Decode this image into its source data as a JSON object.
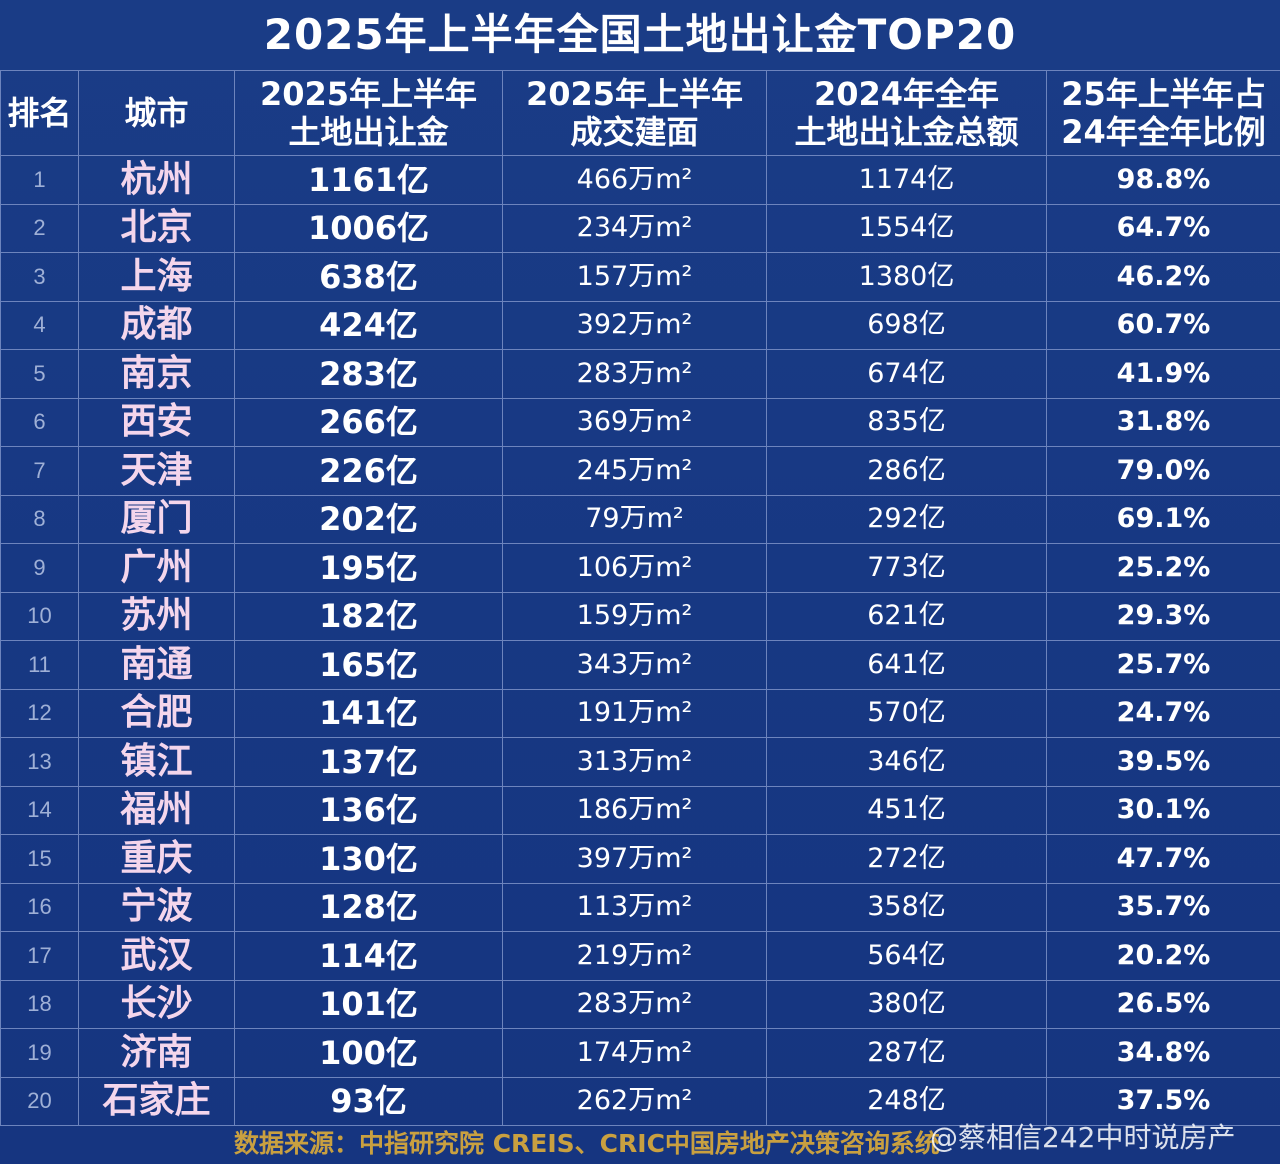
{
  "title": "2025年上半年全国土地出让金TOP20",
  "headers": {
    "rank": "排名",
    "city": "城市",
    "amount_l1": "2025年上半年",
    "amount_l2": "土地出让金",
    "area_l1": "2025年上半年",
    "area_l2": "成交建面",
    "total_l1": "2024年全年",
    "total_l2": "土地出让金总额",
    "ratio_l1": "25年上半年占",
    "ratio_l2": "24年全年比例"
  },
  "rows": [
    {
      "rank": "1",
      "city": "杭州",
      "amount": "1161亿",
      "area": "466万m²",
      "total": "1174亿",
      "ratio": "98.8%"
    },
    {
      "rank": "2",
      "city": "北京",
      "amount": "1006亿",
      "area": "234万m²",
      "total": "1554亿",
      "ratio": "64.7%"
    },
    {
      "rank": "3",
      "city": "上海",
      "amount": "638亿",
      "area": "157万m²",
      "total": "1380亿",
      "ratio": "46.2%"
    },
    {
      "rank": "4",
      "city": "成都",
      "amount": "424亿",
      "area": "392万m²",
      "total": "698亿",
      "ratio": "60.7%"
    },
    {
      "rank": "5",
      "city": "南京",
      "amount": "283亿",
      "area": "283万m²",
      "total": "674亿",
      "ratio": "41.9%"
    },
    {
      "rank": "6",
      "city": "西安",
      "amount": "266亿",
      "area": "369万m²",
      "total": "835亿",
      "ratio": "31.8%"
    },
    {
      "rank": "7",
      "city": "天津",
      "amount": "226亿",
      "area": "245万m²",
      "total": "286亿",
      "ratio": "79.0%"
    },
    {
      "rank": "8",
      "city": "厦门",
      "amount": "202亿",
      "area": "79万m²",
      "total": "292亿",
      "ratio": "69.1%"
    },
    {
      "rank": "9",
      "city": "广州",
      "amount": "195亿",
      "area": "106万m²",
      "total": "773亿",
      "ratio": "25.2%"
    },
    {
      "rank": "10",
      "city": "苏州",
      "amount": "182亿",
      "area": "159万m²",
      "total": "621亿",
      "ratio": "29.3%"
    },
    {
      "rank": "11",
      "city": "南通",
      "amount": "165亿",
      "area": "343万m²",
      "total": "641亿",
      "ratio": "25.7%"
    },
    {
      "rank": "12",
      "city": "合肥",
      "amount": "141亿",
      "area": "191万m²",
      "total": "570亿",
      "ratio": "24.7%"
    },
    {
      "rank": "13",
      "city": "镇江",
      "amount": "137亿",
      "area": "313万m²",
      "total": "346亿",
      "ratio": "39.5%"
    },
    {
      "rank": "14",
      "city": "福州",
      "amount": "136亿",
      "area": "186万m²",
      "total": "451亿",
      "ratio": "30.1%"
    },
    {
      "rank": "15",
      "city": "重庆",
      "amount": "130亿",
      "area": "397万m²",
      "total": "272亿",
      "ratio": "47.7%"
    },
    {
      "rank": "16",
      "city": "宁波",
      "amount": "128亿",
      "area": "113万m²",
      "total": "358亿",
      "ratio": "35.7%"
    },
    {
      "rank": "17",
      "city": "武汉",
      "amount": "114亿",
      "area": "219万m²",
      "total": "564亿",
      "ratio": "20.2%"
    },
    {
      "rank": "18",
      "city": "长沙",
      "amount": "101亿",
      "area": "283万m²",
      "total": "380亿",
      "ratio": "26.5%"
    },
    {
      "rank": "19",
      "city": "济南",
      "amount": "100亿",
      "area": "174万m²",
      "total": "287亿",
      "ratio": "34.8%"
    },
    {
      "rank": "20",
      "city": "石家庄",
      "amount": "93亿",
      "area": "262万m²",
      "total": "248亿",
      "ratio": "37.5%"
    }
  ],
  "source": "数据来源：中指研究院 CREIS、CRIC中国房地产决策咨询系统",
  "watermark": "@蔡相信242中时说房产",
  "colors": {
    "background": "#16367f",
    "grid": "#6d84bd",
    "city_text": "#f4d6ec",
    "source_text": "#c9a040"
  },
  "chart_data": {
    "type": "table",
    "title": "2025年上半年全国土地出让金TOP20",
    "columns": [
      "排名",
      "城市",
      "2025年上半年土地出让金",
      "2025年上半年成交建面",
      "2024年全年土地出让金总额",
      "25年上半年占24年全年比例"
    ],
    "units": {
      "amount": "亿",
      "area": "万m²",
      "total": "亿",
      "ratio": "%"
    },
    "categories": [
      "杭州",
      "北京",
      "上海",
      "成都",
      "南京",
      "西安",
      "天津",
      "厦门",
      "广州",
      "苏州",
      "南通",
      "合肥",
      "镇江",
      "福州",
      "重庆",
      "宁波",
      "武汉",
      "长沙",
      "济南",
      "石家庄"
    ],
    "series": [
      {
        "name": "2025年上半年土地出让金",
        "values": [
          1161,
          1006,
          638,
          424,
          283,
          266,
          226,
          202,
          195,
          182,
          165,
          141,
          137,
          136,
          130,
          128,
          114,
          101,
          100,
          93
        ]
      },
      {
        "name": "2025年上半年成交建面",
        "values": [
          466,
          234,
          157,
          392,
          283,
          369,
          245,
          79,
          106,
          159,
          343,
          191,
          313,
          186,
          397,
          113,
          219,
          283,
          174,
          262
        ]
      },
      {
        "name": "2024年全年土地出让金总额",
        "values": [
          1174,
          1554,
          1380,
          698,
          674,
          835,
          286,
          292,
          773,
          621,
          641,
          570,
          346,
          451,
          272,
          358,
          564,
          380,
          287,
          248
        ]
      },
      {
        "name": "25年上半年占24年全年比例",
        "values": [
          98.8,
          64.7,
          46.2,
          60.7,
          41.9,
          31.8,
          79.0,
          69.1,
          25.2,
          29.3,
          25.7,
          24.7,
          39.5,
          30.1,
          47.7,
          35.7,
          20.2,
          26.5,
          34.8,
          37.5
        ]
      }
    ]
  }
}
